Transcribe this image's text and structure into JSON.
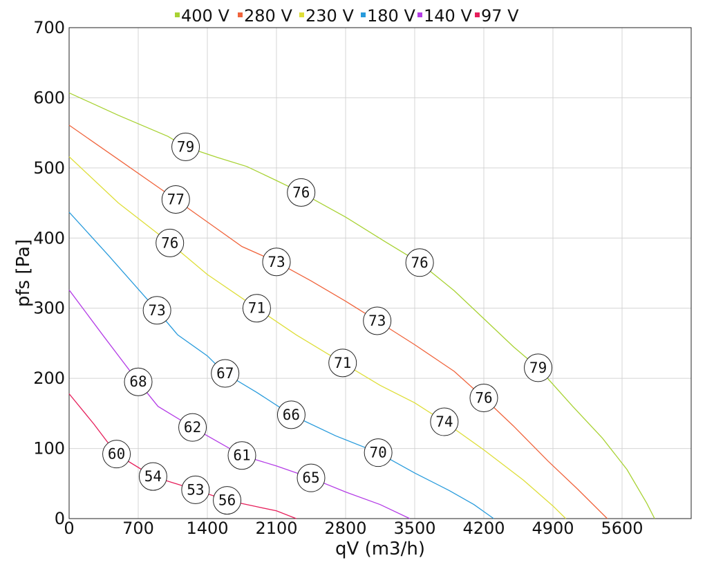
{
  "chart_data": {
    "type": "line",
    "xlabel": "qV (m3/h)",
    "ylabel": "pfs [Pa]",
    "xlim": [
      0,
      6300
    ],
    "ylim": [
      0,
      700
    ],
    "x_ticks": [
      0,
      700,
      1400,
      2100,
      2800,
      3500,
      4200,
      4900,
      5600
    ],
    "y_ticks": [
      0,
      100,
      200,
      300,
      400,
      500,
      600,
      700
    ],
    "grid": true,
    "legend_position": "top",
    "series": [
      {
        "name": "400 V",
        "color": "#a8d233",
        "points": [
          [
            0,
            607
          ],
          [
            500,
            575
          ],
          [
            1000,
            545
          ],
          [
            1180,
            530
          ],
          [
            1500,
            515
          ],
          [
            1800,
            502
          ],
          [
            2100,
            482
          ],
          [
            2350,
            465
          ],
          [
            2800,
            430
          ],
          [
            3200,
            395
          ],
          [
            3550,
            365
          ],
          [
            3900,
            325
          ],
          [
            4200,
            285
          ],
          [
            4500,
            245
          ],
          [
            4750,
            215
          ],
          [
            5100,
            160
          ],
          [
            5400,
            115
          ],
          [
            5650,
            70
          ],
          [
            5850,
            22
          ],
          [
            5930,
            0
          ]
        ]
      },
      {
        "name": "280 V",
        "color": "#f0643c",
        "points": [
          [
            0,
            561
          ],
          [
            500,
            512
          ],
          [
            1080,
            455
          ],
          [
            1400,
            423
          ],
          [
            1750,
            388
          ],
          [
            2100,
            366
          ],
          [
            2450,
            339
          ],
          [
            2800,
            310
          ],
          [
            3120,
            282
          ],
          [
            3500,
            248
          ],
          [
            3900,
            210
          ],
          [
            4200,
            172
          ],
          [
            4500,
            132
          ],
          [
            4850,
            82
          ],
          [
            5150,
            42
          ],
          [
            5450,
            0
          ]
        ]
      },
      {
        "name": "230 V",
        "color": "#dede38",
        "points": [
          [
            0,
            516
          ],
          [
            500,
            450
          ],
          [
            1020,
            393
          ],
          [
            1400,
            348
          ],
          [
            1900,
            300
          ],
          [
            2300,
            262
          ],
          [
            2770,
            222
          ],
          [
            3150,
            190
          ],
          [
            3500,
            165
          ],
          [
            3800,
            138
          ],
          [
            4200,
            98
          ],
          [
            4600,
            55
          ],
          [
            4900,
            18
          ],
          [
            5030,
            0
          ]
        ]
      },
      {
        "name": "180 V",
        "color": "#289bdc",
        "points": [
          [
            0,
            437
          ],
          [
            400,
            375
          ],
          [
            890,
            297
          ],
          [
            1100,
            262
          ],
          [
            1400,
            232
          ],
          [
            1580,
            207
          ],
          [
            1900,
            180
          ],
          [
            2250,
            148
          ],
          [
            2700,
            118
          ],
          [
            3130,
            94
          ],
          [
            3500,
            65
          ],
          [
            3850,
            40
          ],
          [
            4100,
            20
          ],
          [
            4300,
            0
          ]
        ]
      },
      {
        "name": "140 V",
        "color": "#b43ce6",
        "points": [
          [
            0,
            326
          ],
          [
            350,
            260
          ],
          [
            700,
            195
          ],
          [
            900,
            160
          ],
          [
            1250,
            130
          ],
          [
            1750,
            90
          ],
          [
            2100,
            75
          ],
          [
            2450,
            58
          ],
          [
            2800,
            38
          ],
          [
            3150,
            20
          ],
          [
            3450,
            0
          ]
        ]
      },
      {
        "name": "97 V",
        "color": "#e61e5a",
        "points": [
          [
            0,
            178
          ],
          [
            250,
            135
          ],
          [
            480,
            92
          ],
          [
            850,
            60
          ],
          [
            1280,
            41
          ],
          [
            1600,
            26
          ],
          [
            1900,
            17
          ],
          [
            2100,
            11
          ],
          [
            2300,
            0
          ]
        ]
      }
    ],
    "annotations": [
      {
        "series": "400 V",
        "x": 1180,
        "y": 530,
        "label": "79"
      },
      {
        "series": "400 V",
        "x": 2350,
        "y": 465,
        "label": "76"
      },
      {
        "series": "400 V",
        "x": 3550,
        "y": 365,
        "label": "76"
      },
      {
        "series": "400 V",
        "x": 4750,
        "y": 215,
        "label": "79"
      },
      {
        "series": "280 V",
        "x": 1080,
        "y": 455,
        "label": "77"
      },
      {
        "series": "280 V",
        "x": 2100,
        "y": 366,
        "label": "73"
      },
      {
        "series": "280 V",
        "x": 3120,
        "y": 282,
        "label": "73"
      },
      {
        "series": "280 V",
        "x": 4200,
        "y": 172,
        "label": "76"
      },
      {
        "series": "230 V",
        "x": 1020,
        "y": 393,
        "label": "76"
      },
      {
        "series": "230 V",
        "x": 1900,
        "y": 300,
        "label": "71"
      },
      {
        "series": "230 V",
        "x": 2770,
        "y": 222,
        "label": "71"
      },
      {
        "series": "230 V",
        "x": 3800,
        "y": 138,
        "label": "74"
      },
      {
        "series": "180 V",
        "x": 890,
        "y": 297,
        "label": "73"
      },
      {
        "series": "180 V",
        "x": 1580,
        "y": 207,
        "label": "67"
      },
      {
        "series": "180 V",
        "x": 2250,
        "y": 148,
        "label": "66"
      },
      {
        "series": "180 V",
        "x": 3130,
        "y": 94,
        "label": "70"
      },
      {
        "series": "140 V",
        "x": 700,
        "y": 195,
        "label": "68"
      },
      {
        "series": "140 V",
        "x": 1250,
        "y": 130,
        "label": "62"
      },
      {
        "series": "140 V",
        "x": 1750,
        "y": 90,
        "label": "61"
      },
      {
        "series": "140 V",
        "x": 2450,
        "y": 58,
        "label": "65"
      },
      {
        "series": "97 V",
        "x": 480,
        "y": 92,
        "label": "60"
      },
      {
        "series": "97 V",
        "x": 850,
        "y": 60,
        "label": "54"
      },
      {
        "series": "97 V",
        "x": 1280,
        "y": 41,
        "label": "53"
      },
      {
        "series": "97 V",
        "x": 1600,
        "y": 26,
        "label": "56"
      }
    ]
  }
}
